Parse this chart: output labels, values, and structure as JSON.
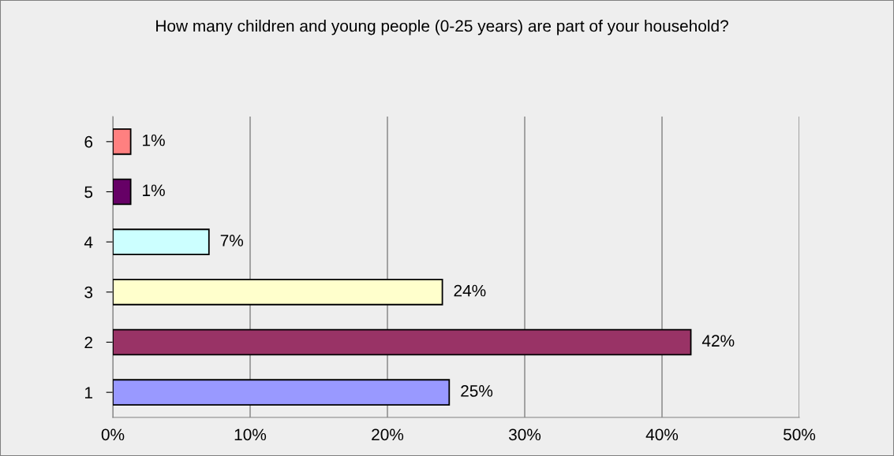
{
  "chart_data": {
    "type": "bar",
    "orientation": "horizontal",
    "title": "How many children and young people (0-25 years) are part of your household?",
    "categories": [
      "6",
      "5",
      "4",
      "3",
      "2",
      "1"
    ],
    "values": [
      1.3,
      1.3,
      7.0,
      24.0,
      42.1,
      24.5
    ],
    "colors": [
      "#ff8080",
      "#660066",
      "#ccffff",
      "#ffffcc",
      "#993366",
      "#9999ff"
    ],
    "value_labels": [
      "1%",
      "1%",
      "7%",
      "24%",
      "42%",
      "25%"
    ],
    "xlim": [
      0,
      50
    ],
    "xticks": [
      {
        "value": 0,
        "label": "0%"
      },
      {
        "value": 10,
        "label": "10%"
      },
      {
        "value": 20,
        "label": "20%"
      },
      {
        "value": 30,
        "label": "30%"
      },
      {
        "value": 40,
        "label": "40%"
      },
      {
        "value": 50,
        "label": "50%"
      }
    ],
    "grid": "x",
    "legend": false
  }
}
